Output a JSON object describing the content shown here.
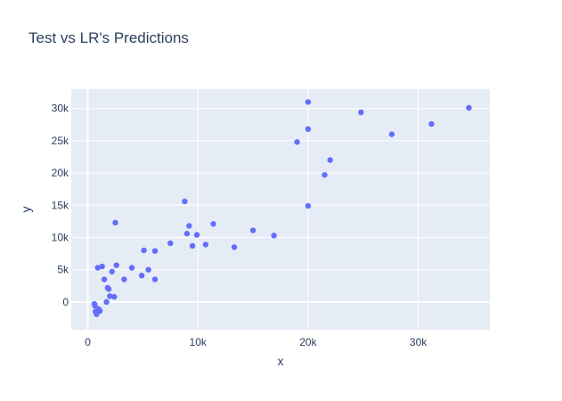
{
  "chart_data": {
    "type": "scatter",
    "title": "Test vs LR's Predictions",
    "xlabel": "x",
    "ylabel": "y",
    "xlim": [
      -1500,
      36500
    ],
    "ylim": [
      -4300,
      33000
    ],
    "x_ticks": [
      0,
      10000,
      20000,
      30000
    ],
    "x_tick_labels": [
      "0",
      "10k",
      "20k",
      "30k"
    ],
    "y_ticks": [
      0,
      5000,
      10000,
      15000,
      20000,
      25000,
      30000
    ],
    "y_tick_labels": [
      "0",
      "5k",
      "10k",
      "15k",
      "20k",
      "25k",
      "30k"
    ],
    "grid": true,
    "colors": {
      "background": "#e5ecf6",
      "grid": "#ffffff",
      "marker": "#636efa",
      "text": "#2a3f5f"
    },
    "series": [
      {
        "x": [
          600,
          650,
          700,
          900,
          1100,
          800,
          1000,
          1300,
          1500,
          1700,
          1800,
          1900,
          2000,
          2200,
          2400,
          2500,
          2600,
          3300,
          4000,
          4900,
          5100,
          5500,
          6100,
          6100,
          7500,
          8800,
          9000,
          9200,
          9500,
          9900,
          10700,
          11400,
          13300,
          15000,
          16900,
          19000,
          20000,
          20000,
          20000,
          21500,
          22000,
          24800,
          27600,
          31200,
          34600
        ],
        "y": [
          -300,
          -600,
          -1500,
          5300,
          -1400,
          -1900,
          -1100,
          5500,
          3500,
          0,
          2200,
          2000,
          900,
          4700,
          800,
          12300,
          5700,
          3500,
          5300,
          4100,
          8000,
          5000,
          3500,
          7900,
          9100,
          15600,
          10600,
          11800,
          8700,
          10400,
          8900,
          12100,
          8500,
          11100,
          10300,
          24800,
          31000,
          26800,
          14900,
          19700,
          22000,
          29400,
          26000,
          27600,
          30100
        ]
      }
    ]
  }
}
